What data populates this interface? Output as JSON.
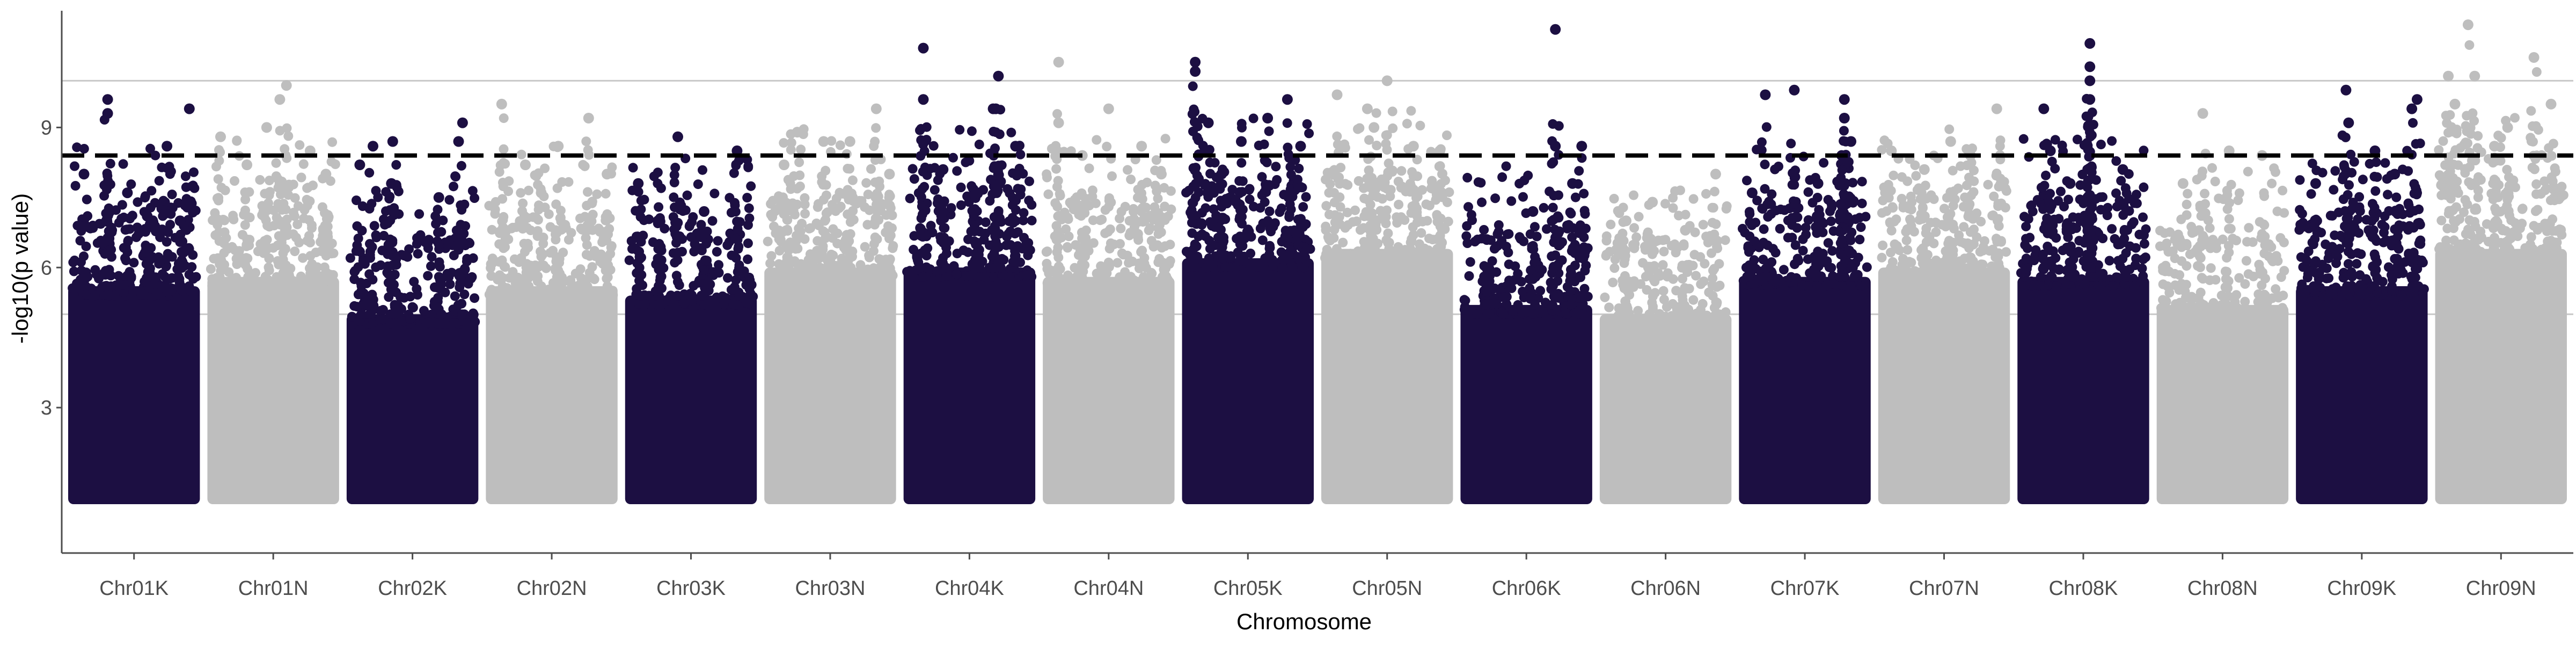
{
  "chart_data": {
    "type": "scatter",
    "xlabel": "Chromosome",
    "ylabel": "-log10(p value)",
    "categories": [
      "Chr01K",
      "Chr01N",
      "Chr02K",
      "Chr02N",
      "Chr03K",
      "Chr03N",
      "Chr04K",
      "Chr04N",
      "Chr05K",
      "Chr05N",
      "Chr06K",
      "Chr06N",
      "Chr07K",
      "Chr07N",
      "Chr08K",
      "Chr08N",
      "Chr09K",
      "Chr09N"
    ],
    "y_ticks": [
      "3",
      "6",
      "9"
    ],
    "y_tick_values": [
      3,
      6,
      9
    ],
    "ylim": [
      0,
      11.5
    ],
    "grid": {
      "horizontal_lines": [
        5,
        10
      ]
    },
    "threshold": {
      "value": 8.4,
      "style": "dashed"
    },
    "colors": {
      "dark": "#1c0f42",
      "light": "#bebebe",
      "threshold": "#000000",
      "grid": "#c8c8c8",
      "axis": "#4d4d4d"
    },
    "series": [
      {
        "chromosome": "Chr01K",
        "color": "dark",
        "body_max": 5.6,
        "peaks": [
          [
            0.3,
            9.6
          ],
          [
            0.3,
            9.3
          ],
          [
            0.92,
            9.4
          ],
          [
            0.75,
            8.6
          ],
          [
            0.12,
            8.0
          ],
          [
            0.45,
            7.6
          ],
          [
            0.6,
            7.1
          ],
          [
            0.85,
            7.0
          ]
        ]
      },
      {
        "chromosome": "Chr01N",
        "color": "light",
        "body_max": 5.8,
        "peaks": [
          [
            0.6,
            9.9
          ],
          [
            0.55,
            9.6
          ],
          [
            0.45,
            9.0
          ],
          [
            0.1,
            8.8
          ],
          [
            0.78,
            8.5
          ],
          [
            0.3,
            8.2
          ],
          [
            0.9,
            8.0
          ]
        ]
      },
      {
        "chromosome": "Chr02K",
        "color": "dark",
        "body_max": 5.0,
        "peaks": [
          [
            0.88,
            9.1
          ],
          [
            0.2,
            8.6
          ],
          [
            0.35,
            8.7
          ],
          [
            0.85,
            8.7
          ],
          [
            0.34,
            7.8
          ],
          [
            0.7,
            7.5
          ],
          [
            0.1,
            8.2
          ]
        ]
      },
      {
        "chromosome": "Chr02N",
        "color": "light",
        "body_max": 5.6,
        "peaks": [
          [
            0.12,
            9.5
          ],
          [
            0.78,
            9.2
          ],
          [
            0.55,
            8.6
          ],
          [
            0.3,
            8.2
          ],
          [
            0.92,
            8.0
          ],
          [
            0.42,
            7.6
          ]
        ]
      },
      {
        "chromosome": "Chr03K",
        "color": "dark",
        "body_max": 5.4,
        "peaks": [
          [
            0.4,
            8.8
          ],
          [
            0.85,
            8.5
          ],
          [
            0.1,
            7.8
          ],
          [
            0.6,
            7.2
          ],
          [
            0.25,
            7.0
          ]
        ]
      },
      {
        "chromosome": "Chr03N",
        "color": "light",
        "body_max": 6.0,
        "peaks": [
          [
            0.85,
            9.4
          ],
          [
            0.25,
            8.9
          ],
          [
            0.45,
            8.7
          ],
          [
            0.65,
            8.7
          ],
          [
            0.15,
            8.2
          ],
          [
            0.95,
            8.0
          ]
        ]
      },
      {
        "chromosome": "Chr04K",
        "color": "dark",
        "body_max": 6.0,
        "peaks": [
          [
            0.15,
            10.7
          ],
          [
            0.72,
            10.1
          ],
          [
            0.15,
            9.6
          ],
          [
            0.68,
            9.4
          ],
          [
            0.7,
            9.4
          ],
          [
            0.85,
            8.6
          ],
          [
            0.3,
            8.1
          ],
          [
            0.55,
            7.6
          ]
        ]
      },
      {
        "chromosome": "Chr04N",
        "color": "light",
        "body_max": 5.8,
        "peaks": [
          [
            0.12,
            10.4
          ],
          [
            0.5,
            9.4
          ],
          [
            0.12,
            9.1
          ],
          [
            0.75,
            8.6
          ],
          [
            0.3,
            8.4
          ],
          [
            0.9,
            8.0
          ]
        ]
      },
      {
        "chromosome": "Chr05K",
        "color": "dark",
        "body_max": 6.2,
        "peaks": [
          [
            0.1,
            10.4
          ],
          [
            0.1,
            10.2
          ],
          [
            0.8,
            9.6
          ],
          [
            0.65,
            9.2
          ],
          [
            0.2,
            9.1
          ],
          [
            0.45,
            8.7
          ],
          [
            0.9,
            8.6
          ],
          [
            0.3,
            8.0
          ]
        ]
      },
      {
        "chromosome": "Chr05N",
        "color": "light",
        "body_max": 6.4,
        "peaks": [
          [
            0.5,
            10.0
          ],
          [
            0.12,
            9.7
          ],
          [
            0.35,
            9.4
          ],
          [
            0.4,
            9.0
          ],
          [
            0.7,
            8.6
          ],
          [
            0.9,
            8.5
          ]
        ]
      },
      {
        "chromosome": "Chr06K",
        "color": "dark",
        "body_max": 5.2,
        "peaks": [
          [
            0.72,
            11.1
          ],
          [
            0.72,
            8.6
          ],
          [
            0.92,
            8.6
          ],
          [
            0.85,
            7.8
          ],
          [
            0.55,
            7.2
          ],
          [
            0.2,
            6.6
          ]
        ]
      },
      {
        "chromosome": "Chr06N",
        "color": "light",
        "body_max": 5.0,
        "peaks": [
          [
            0.88,
            8.0
          ],
          [
            0.4,
            7.4
          ],
          [
            0.2,
            7.0
          ],
          [
            0.65,
            6.8
          ]
        ]
      },
      {
        "chromosome": "Chr07K",
        "color": "dark",
        "body_max": 5.8,
        "peaks": [
          [
            0.42,
            9.8
          ],
          [
            0.2,
            9.7
          ],
          [
            0.8,
            9.6
          ],
          [
            0.8,
            9.2
          ],
          [
            0.85,
            8.7
          ],
          [
            0.78,
            8.4
          ],
          [
            0.6,
            7.8
          ],
          [
            0.1,
            7.6
          ]
        ]
      },
      {
        "chromosome": "Chr07N",
        "color": "light",
        "body_max": 6.0,
        "peaks": [
          [
            0.9,
            9.4
          ],
          [
            0.1,
            8.5
          ],
          [
            0.55,
            8.7
          ],
          [
            0.7,
            8.4
          ],
          [
            0.35,
            8.1
          ]
        ]
      },
      {
        "chromosome": "Chr08K",
        "color": "dark",
        "body_max": 5.8,
        "peaks": [
          [
            0.55,
            10.8
          ],
          [
            0.55,
            10.3
          ],
          [
            0.55,
            10.0
          ],
          [
            0.2,
            9.4
          ],
          [
            0.55,
            9.6
          ],
          [
            0.25,
            8.5
          ],
          [
            0.8,
            8.1
          ],
          [
            0.4,
            7.8
          ]
        ]
      },
      {
        "chromosome": "Chr08N",
        "color": "light",
        "body_max": 5.2,
        "peaks": [
          [
            0.35,
            9.3
          ],
          [
            0.55,
            8.5
          ],
          [
            0.8,
            8.4
          ],
          [
            0.2,
            7.8
          ]
        ]
      },
      {
        "chromosome": "Chr09K",
        "color": "dark",
        "body_max": 5.6,
        "peaks": [
          [
            0.38,
            9.8
          ],
          [
            0.92,
            9.6
          ],
          [
            0.88,
            9.4
          ],
          [
            0.4,
            9.1
          ],
          [
            0.6,
            8.5
          ],
          [
            0.15,
            7.8
          ],
          [
            0.75,
            8.0
          ]
        ]
      },
      {
        "chromosome": "Chr09N",
        "color": "light",
        "body_max": 6.4,
        "peaks": [
          [
            0.25,
            11.2
          ],
          [
            0.75,
            10.5
          ],
          [
            0.1,
            10.1
          ],
          [
            0.3,
            10.1
          ],
          [
            0.15,
            9.5
          ],
          [
            0.88,
            9.5
          ],
          [
            0.55,
            9.0
          ],
          [
            0.45,
            8.6
          ]
        ]
      }
    ]
  }
}
